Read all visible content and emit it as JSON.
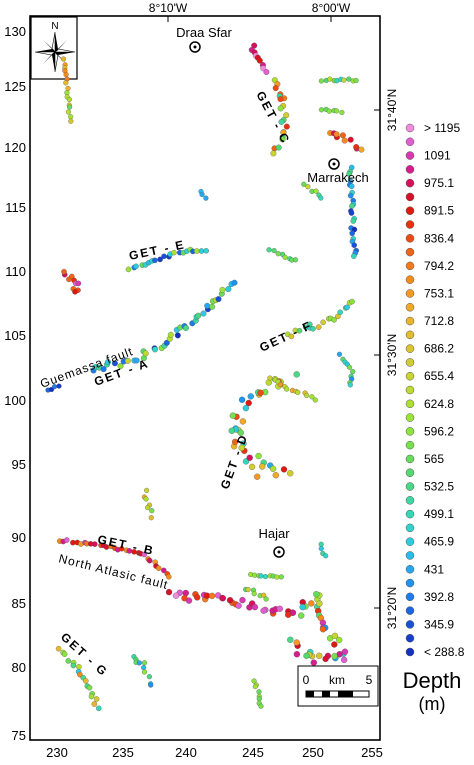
{
  "top_axis_labels": [
    "8°10'W",
    "8°00'W"
  ],
  "left_axis_labels": [
    "130",
    "125",
    "120",
    "115",
    "110",
    "105",
    "100",
    "95",
    "90",
    "85",
    "80",
    "75"
  ],
  "bottom_axis_labels": [
    "230",
    "235",
    "240",
    "245",
    "250",
    "255"
  ],
  "right_axis_labels": [
    "31°40'N",
    "31°30'N",
    "31°20'N"
  ],
  "north_label": "N",
  "places": [
    {
      "name": "Draa Sfar"
    },
    {
      "name": "Marrakech"
    },
    {
      "name": "Hajar"
    }
  ],
  "structure_labels": {
    "get_c": "GET - C",
    "get_e": "GET - E",
    "get_f": "GET - F",
    "get_a": "GET - A",
    "get_d": "GET - D",
    "get_b": "GET - B",
    "get_g": "GET - G",
    "guemassa_fault": "Guemassa fault",
    "north_atlas_fault": "North Atlasic fault"
  },
  "legend": {
    "title": "Depth",
    "unit": "(m)",
    "items": [
      {
        "label": "> 1195",
        "color": "#f08ce0"
      },
      {
        "label": "",
        "color": "#e060d0"
      },
      {
        "label": "1091",
        "color": "#d838b0"
      },
      {
        "label": "",
        "color": "#d81c8c"
      },
      {
        "label": "975.1",
        "color": "#d8105c"
      },
      {
        "label": "",
        "color": "#d8102c"
      },
      {
        "label": "891.5",
        "color": "#e01810"
      },
      {
        "label": "",
        "color": "#e83010"
      },
      {
        "label": "836.4",
        "color": "#ee4a12"
      },
      {
        "label": "",
        "color": "#f06418"
      },
      {
        "label": "794.2",
        "color": "#f47a1c"
      },
      {
        "label": "",
        "color": "#f48c1c"
      },
      {
        "label": "753.1",
        "color": "#f49a22"
      },
      {
        "label": "",
        "color": "#f2aa26"
      },
      {
        "label": "712.8",
        "color": "#eab42a"
      },
      {
        "label": "",
        "color": "#e2bc2c"
      },
      {
        "label": "686.2",
        "color": "#dac430"
      },
      {
        "label": "",
        "color": "#d2cc30"
      },
      {
        "label": "655.4",
        "color": "#c8d430"
      },
      {
        "label": "",
        "color": "#bcda30"
      },
      {
        "label": "624.8",
        "color": "#aee030"
      },
      {
        "label": "",
        "color": "#9ee434"
      },
      {
        "label": "596.2",
        "color": "#8ce43c"
      },
      {
        "label": "",
        "color": "#78e04c"
      },
      {
        "label": "565",
        "color": "#66dc5c"
      },
      {
        "label": "",
        "color": "#56d870"
      },
      {
        "label": "532.5",
        "color": "#48d888"
      },
      {
        "label": "",
        "color": "#3cd8a0"
      },
      {
        "label": "499.1",
        "color": "#34d8b8"
      },
      {
        "label": "",
        "color": "#30d4cc"
      },
      {
        "label": "465.9",
        "color": "#2ccce0"
      },
      {
        "label": "",
        "color": "#28bcec"
      },
      {
        "label": "431",
        "color": "#24a8f0"
      },
      {
        "label": "",
        "color": "#2092f0"
      },
      {
        "label": "392.8",
        "color": "#1c7cec"
      },
      {
        "label": "",
        "color": "#1a66e4"
      },
      {
        "label": "345.9",
        "color": "#1850d8"
      },
      {
        "label": "",
        "color": "#1640cc"
      },
      {
        "label": "< 288.8",
        "color": "#1430c0"
      }
    ]
  },
  "scale_bar": {
    "left": "0",
    "mid": "km",
    "right": "5"
  }
}
